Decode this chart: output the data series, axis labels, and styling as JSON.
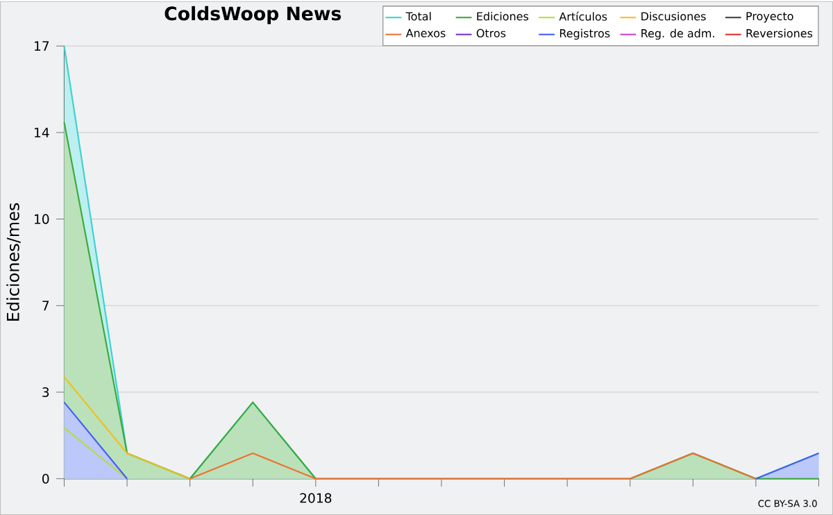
{
  "chart_data": {
    "type": "line",
    "title": "ColdsWoop News",
    "ylabel": "Ediciones/mes",
    "categories": [
      null,
      null,
      null,
      null,
      "2018",
      null,
      null,
      null,
      null,
      null,
      null,
      null,
      null
    ],
    "series": [
      {
        "name": "Total",
        "color": "#40d0d0",
        "type": "area",
        "values": [
          17,
          1,
          0,
          3,
          0,
          0,
          0,
          0,
          0,
          0,
          1,
          0,
          1
        ]
      },
      {
        "name": "Ediciones",
        "color": "#3aaa3a",
        "type": "area",
        "values": [
          14,
          1,
          0,
          3,
          0,
          0,
          0,
          0,
          0,
          0,
          1,
          0,
          0
        ]
      },
      {
        "name": "Artículos",
        "color": "#b0e040",
        "values": [
          2,
          0,
          null,
          null,
          null,
          null,
          null,
          null,
          null,
          null,
          null,
          null,
          null
        ]
      },
      {
        "name": "Discusiones",
        "color": "#f0c020",
        "values": [
          4,
          1,
          0,
          null,
          null,
          null,
          null,
          null,
          null,
          null,
          null,
          null,
          null
        ]
      },
      {
        "name": "Proyecto",
        "color": "#404040",
        "values": [
          null,
          null,
          null,
          null,
          null,
          null,
          null,
          null,
          null,
          null,
          null,
          null,
          null
        ]
      },
      {
        "name": "Anexos",
        "color": "#f07030",
        "values": [
          null,
          null,
          0,
          1,
          0,
          0,
          0,
          0,
          0,
          0,
          1,
          0,
          null
        ]
      },
      {
        "name": "Otros",
        "color": "#8030d0",
        "values": [
          null,
          null,
          null,
          null,
          null,
          null,
          null,
          null,
          null,
          null,
          null,
          null,
          null
        ]
      },
      {
        "name": "Registros",
        "color": "#4060f0",
        "type": "area",
        "values": [
          3,
          0,
          null,
          null,
          null,
          null,
          null,
          null,
          null,
          null,
          null,
          0,
          1
        ]
      },
      {
        "name": "Reg. de adm.",
        "color": "#d040d0",
        "values": [
          null,
          null,
          null,
          null,
          null,
          null,
          null,
          null,
          null,
          null,
          null,
          null,
          null
        ]
      },
      {
        "name": "Reversiones",
        "color": "#e03030",
        "values": [
          null,
          null,
          null,
          null,
          null,
          null,
          null,
          null,
          null,
          null,
          null,
          null,
          null
        ]
      }
    ],
    "ylim": [
      0,
      17
    ],
    "yticks": [
      0,
      {
        "value": 3.4,
        "label": "3"
      },
      {
        "value": 6.8,
        "label": "7"
      },
      {
        "value": 10.2,
        "label": "10"
      },
      {
        "value": 13.6,
        "label": "14"
      },
      17
    ],
    "grid": "y",
    "legend": "top right",
    "annotations": [
      "CC BY-SA 3.0"
    ]
  }
}
